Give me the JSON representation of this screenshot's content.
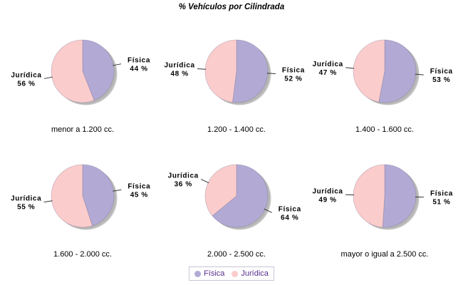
{
  "title": "% Vehículos por Cilindrada",
  "colors": {
    "fisica": "#b2aad4",
    "juridica": "#fbcccc",
    "shadow": "#8f8f8f",
    "slice_stroke": "#6e648c",
    "leader_line": "#333333",
    "label_text": "#000000",
    "legend_text": "#5a2d90",
    "legend_border": "#c6c6d6"
  },
  "legend": {
    "items": [
      {
        "label": "Física",
        "color": "#b2aad4"
      },
      {
        "label": "Jurídica",
        "color": "#fbcccc"
      }
    ]
  },
  "chart_data": [
    {
      "type": "pie",
      "title": "menor a 1.200 cc.",
      "labels": [
        "Física",
        "Jurídica"
      ],
      "values": [
        44,
        56
      ],
      "unit": "%",
      "legend_position": "bottom"
    },
    {
      "type": "pie",
      "title": "1.200 - 1.400 cc.",
      "labels": [
        "Física",
        "Jurídica"
      ],
      "values": [
        52,
        48
      ],
      "unit": "%",
      "legend_position": "bottom"
    },
    {
      "type": "pie",
      "title": "1.400 - 1.600 cc.",
      "labels": [
        "Física",
        "Jurídica"
      ],
      "values": [
        53,
        47
      ],
      "unit": "%",
      "legend_position": "bottom"
    },
    {
      "type": "pie",
      "title": "1.600 - 2.000 cc.",
      "labels": [
        "Física",
        "Jurídica"
      ],
      "values": [
        45,
        55
      ],
      "unit": "%",
      "legend_position": "bottom"
    },
    {
      "type": "pie",
      "title": "2.000 - 2.500 cc.",
      "labels": [
        "Física",
        "Jurídica"
      ],
      "values": [
        64,
        36
      ],
      "unit": "%",
      "legend_position": "bottom"
    },
    {
      "type": "pie",
      "title": "mayor o igual a 2.500 cc.",
      "labels": [
        "Física",
        "Jurídica"
      ],
      "values": [
        51,
        49
      ],
      "unit": "%",
      "legend_position": "bottom"
    }
  ]
}
